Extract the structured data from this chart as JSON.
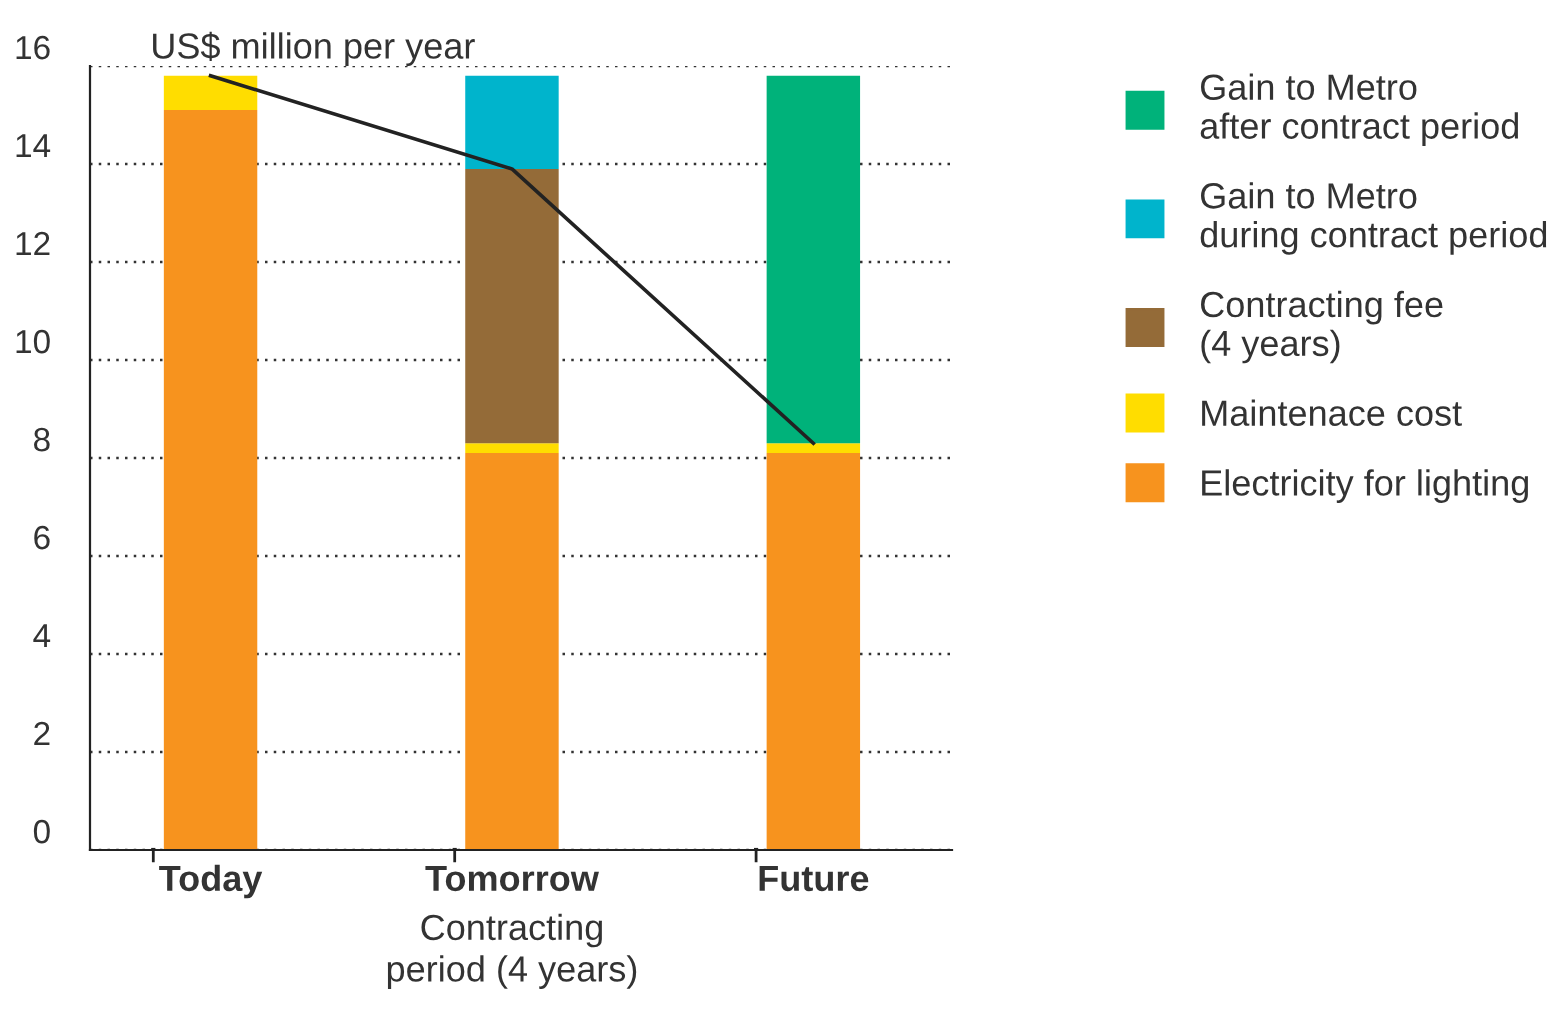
{
  "chart_data": {
    "type": "bar",
    "stacked": true,
    "ylabel": "US$ million per year",
    "categories": [
      "Today",
      "Tomorrow\nContracting\nperiod (4 years)",
      "Future"
    ],
    "series": [
      {
        "name": "Electricity for lighting",
        "color": "#f7931e",
        "values": [
          15.1,
          8.1,
          8.1
        ]
      },
      {
        "name": "Maintenace cost",
        "color": "#ffdd00",
        "values": [
          0.7,
          0.2,
          0.2
        ]
      },
      {
        "name": "Contracting fee\n(4 years)",
        "color": "#946b38",
        "values": [
          null,
          5.6,
          null
        ]
      },
      {
        "name": "Gain to Metro\nduring contract period",
        "color": "#00b4cc",
        "values": [
          null,
          1.9,
          null
        ]
      },
      {
        "name": "Gain to Metro\nafter contract period",
        "color": "#00b27a",
        "values": [
          null,
          null,
          7.5
        ]
      },
      {
        "type": "line",
        "color": "#222222",
        "values": [
          15.8,
          13.9,
          8.3
        ]
      }
    ],
    "ylim": [
      0,
      16
    ],
    "yticks": [
      0,
      2,
      4,
      6,
      8,
      10,
      12,
      14,
      16
    ],
    "grid": "y",
    "legend": "right"
  }
}
